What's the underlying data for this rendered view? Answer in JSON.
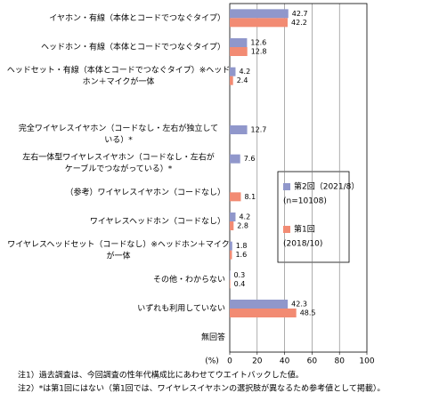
{
  "chart_data": {
    "type": "bar",
    "orientation": "horizontal",
    "categories": [
      [
        "イヤホン・有線（本体とコードでつなぐタイプ）"
      ],
      [
        "ヘッドホン・有線（本体とコードでつなぐタイプ）"
      ],
      [
        "ヘッドセット・有線（本体とコードでつなぐタイプ）※ヘッド",
        "ホン＋マイクが一体"
      ],
      null,
      [
        "完全ワイヤレスイヤホン（コードなし・左右が独立して",
        "いる）*"
      ],
      [
        "左右一体型ワイヤレスイヤホン（コードなし・左右が",
        "ケーブルでつながっている）*"
      ],
      [
        "（参考）ワイヤレスイヤホン（コードなし）"
      ],
      [
        "ワイヤレスヘッドホン（コードなし）"
      ],
      [
        "ワイヤレスヘッドセット（コードなし）※ヘッドホン＋マイク",
        "が一体"
      ],
      [
        "その他・わからない"
      ],
      [
        "いずれも利用していない"
      ],
      [
        "無回答"
      ]
    ],
    "series": [
      {
        "name": [
          "第2回（2021/8）",
          "(n=10108)"
        ],
        "color": "#9097cb",
        "values": [
          42.7,
          12.6,
          4.2,
          null,
          12.7,
          7.6,
          null,
          4.2,
          1.8,
          0.3,
          42.3,
          null
        ]
      },
      {
        "name": [
          "第1回",
          "(2018/10)"
        ],
        "color": "#f28b73",
        "values": [
          42.2,
          12.8,
          2.4,
          null,
          null,
          null,
          8.1,
          2.8,
          1.6,
          0.4,
          48.5,
          null
        ]
      }
    ],
    "xlabel": "(%)",
    "xlim": [
      0,
      100
    ],
    "xticks": [
      0,
      20,
      40,
      60,
      80,
      100
    ],
    "grid": true,
    "notes": [
      "注1）過去調査は、今回調査の性年代構成比にあわせてウエイトバックした値。",
      "注2）*は第1回にはない（第1回では、ワイヤレスイヤホンの選択肢が異なるため参考値として掲載）。"
    ]
  }
}
